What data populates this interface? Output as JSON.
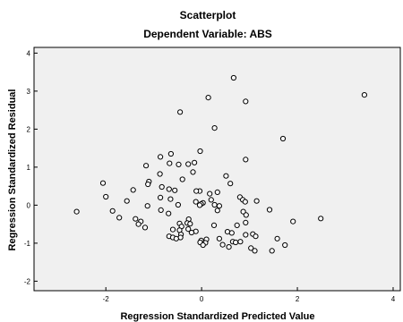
{
  "chart_data": {
    "type": "scatter",
    "title": "Scatterplot",
    "subtitle": "Dependent Variable: ABS",
    "xlabel": "Regression Standardized Predicted Value",
    "ylabel": "Regression Standardized Residual",
    "xlim": [
      -3.5,
      4.15
    ],
    "ylim": [
      -2.25,
      4.15
    ],
    "xticks": [
      -2,
      0,
      2,
      4
    ],
    "yticks": [
      -2,
      -1,
      0,
      1,
      2,
      3,
      4
    ],
    "grid": false,
    "colors": {
      "plot_background": "#f0f0f0",
      "marker_stroke": "#000000",
      "marker_fill": "#ffffff"
    },
    "points": [
      [
        0.67,
        3.35
      ],
      [
        3.4,
        2.9
      ],
      [
        0.14,
        2.83
      ],
      [
        0.92,
        2.73
      ],
      [
        -0.45,
        2.45
      ],
      [
        0.27,
        2.03
      ],
      [
        1.7,
        1.75
      ],
      [
        -0.03,
        1.42
      ],
      [
        -0.64,
        1.35
      ],
      [
        -0.86,
        1.27
      ],
      [
        -1.16,
        1.04
      ],
      [
        -0.48,
        1.07
      ],
      [
        -0.28,
        1.08
      ],
      [
        -0.67,
        1.1
      ],
      [
        0.92,
        1.2
      ],
      [
        -0.15,
        1.12
      ],
      [
        -0.18,
        0.87
      ],
      [
        -0.87,
        0.82
      ],
      [
        0.51,
        0.77
      ],
      [
        -0.4,
        0.68
      ],
      [
        -1.1,
        0.62
      ],
      [
        0.6,
        0.57
      ],
      [
        -1.12,
        0.55
      ],
      [
        -2.06,
        0.58
      ],
      [
        -0.83,
        0.48
      ],
      [
        -0.68,
        0.42
      ],
      [
        -1.43,
        0.4
      ],
      [
        -0.56,
        0.39
      ],
      [
        -0.04,
        0.37
      ],
      [
        -0.11,
        0.37
      ],
      [
        0.33,
        0.34
      ],
      [
        0.17,
        0.3
      ],
      [
        0.8,
        0.21
      ],
      [
        -2.0,
        0.22
      ],
      [
        -0.86,
        0.2
      ],
      [
        -0.65,
        0.16
      ],
      [
        0.2,
        0.14
      ],
      [
        0.86,
        0.14
      ],
      [
        1.15,
        0.11
      ],
      [
        0.91,
        0.09
      ],
      [
        -1.56,
        0.11
      ],
      [
        -0.12,
        0.09
      ],
      [
        0.03,
        0.06
      ],
      [
        -0.01,
        0.03
      ],
      [
        -0.49,
        0.01
      ],
      [
        -0.04,
        0.0
      ],
      [
        0.27,
        0.01
      ],
      [
        0.37,
        -0.02
      ],
      [
        -1.13,
        -0.02
      ],
      [
        1.42,
        -0.12
      ],
      [
        -1.86,
        -0.15
      ],
      [
        0.33,
        -0.14
      ],
      [
        -0.85,
        -0.13
      ],
      [
        0.87,
        -0.17
      ],
      [
        -2.61,
        -0.17
      ],
      [
        -0.69,
        -0.22
      ],
      [
        0.93,
        -0.26
      ],
      [
        -1.72,
        -0.33
      ],
      [
        2.49,
        -0.35
      ],
      [
        -1.38,
        -0.36
      ],
      [
        -0.27,
        -0.37
      ],
      [
        -1.27,
        -0.43
      ],
      [
        1.91,
        -0.43
      ],
      [
        -0.3,
        -0.47
      ],
      [
        -0.46,
        -0.48
      ],
      [
        -0.24,
        -0.49
      ],
      [
        0.92,
        -0.46
      ],
      [
        -1.32,
        -0.5
      ],
      [
        0.26,
        -0.53
      ],
      [
        0.74,
        -0.53
      ],
      [
        -0.42,
        -0.56
      ],
      [
        -1.18,
        -0.59
      ],
      [
        -0.28,
        -0.63
      ],
      [
        -0.6,
        -0.64
      ],
      [
        -0.46,
        -0.66
      ],
      [
        -0.12,
        -0.69
      ],
      [
        0.54,
        -0.7
      ],
      [
        0.63,
        -0.73
      ],
      [
        -0.21,
        -0.72
      ],
      [
        -0.43,
        -0.77
      ],
      [
        1.07,
        -0.76
      ],
      [
        0.92,
        -0.78
      ],
      [
        1.13,
        -0.82
      ],
      [
        -0.68,
        -0.82
      ],
      [
        -0.6,
        -0.85
      ],
      [
        -0.44,
        -0.85
      ],
      [
        -0.53,
        -0.88
      ],
      [
        1.58,
        -0.88
      ],
      [
        0.37,
        -0.88
      ],
      [
        0.1,
        -0.9
      ],
      [
        -0.01,
        -0.93
      ],
      [
        0.65,
        -0.96
      ],
      [
        0.81,
        -0.96
      ],
      [
        0.71,
        -0.98
      ],
      [
        -0.03,
        -0.98
      ],
      [
        0.08,
        -0.99
      ],
      [
        1.74,
        -1.05
      ],
      [
        0.44,
        -1.04
      ],
      [
        0.03,
        -1.05
      ],
      [
        0.57,
        -1.1
      ],
      [
        1.03,
        -1.13
      ],
      [
        1.11,
        -1.2
      ],
      [
        1.47,
        -1.2
      ]
    ]
  }
}
